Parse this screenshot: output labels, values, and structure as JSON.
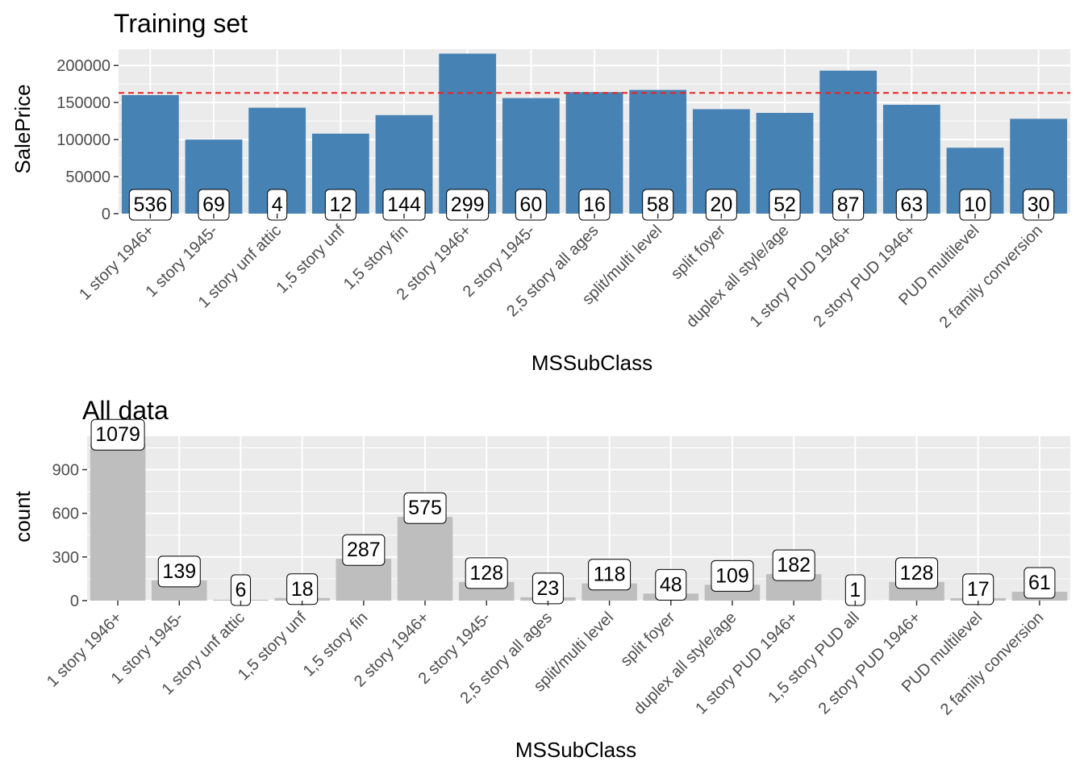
{
  "chart_data": [
    {
      "type": "bar",
      "title": "Training set",
      "xlabel": "MSSubClass",
      "ylabel": "SalePrice",
      "ylim": [
        0,
        222000
      ],
      "yticks": [
        0,
        50000,
        100000,
        150000,
        200000
      ],
      "ytick_labels": [
        "0",
        "50000",
        "100000",
        "150000",
        "200000"
      ],
      "bar_color": "#4682b4",
      "reference_line": {
        "value": 163000,
        "color": "#ee2222",
        "style": "dashed"
      },
      "categories": [
        "1 story 1946+",
        "1 story 1945-",
        "1 story unf attic",
        "1,5 story unf",
        "1,5 story fin",
        "2 story 1946+",
        "2 story 1945-",
        "2,5 story all ages",
        "split/multi level",
        "split foyer",
        "duplex all style/age",
        "1 story PUD 1946+",
        "2 story PUD 1946+",
        "PUD multilevel",
        "2 family conversion"
      ],
      "values": [
        160000,
        100000,
        143000,
        108000,
        133000,
        216000,
        156000,
        164000,
        167000,
        141000,
        136000,
        193000,
        147000,
        89000,
        128000
      ],
      "counts": [
        "536",
        "69",
        "4",
        "12",
        "144",
        "299",
        "60",
        "16",
        "58",
        "20",
        "52",
        "87",
        "63",
        "10",
        "30"
      ],
      "grid": true
    },
    {
      "type": "bar",
      "title": "All data",
      "xlabel": "MSSubClass",
      "ylabel": "count",
      "ylim": [
        0,
        1130
      ],
      "yticks": [
        0,
        300,
        600,
        900
      ],
      "ytick_labels": [
        "0",
        "300",
        "600",
        "900"
      ],
      "bar_color": "#bebebe",
      "categories": [
        "1 story 1946+",
        "1 story 1945-",
        "1 story unf attic",
        "1,5 story unf",
        "1,5 story fin",
        "2 story 1946+",
        "2 story 1945-",
        "2,5 story all ages",
        "split/multi level",
        "split foyer",
        "duplex all style/age",
        "1 story PUD 1946+",
        "1,5 story PUD all",
        "2 story PUD 1946+",
        "PUD multilevel",
        "2 family conversion"
      ],
      "values": [
        1079,
        139,
        6,
        18,
        287,
        575,
        128,
        23,
        118,
        48,
        109,
        182,
        1,
        128,
        17,
        61
      ],
      "counts": [
        "1079",
        "139",
        "6",
        "18",
        "287",
        "575",
        "128",
        "23",
        "118",
        "48",
        "109",
        "182",
        "1",
        "128",
        "17",
        "61"
      ],
      "grid": true
    }
  ]
}
